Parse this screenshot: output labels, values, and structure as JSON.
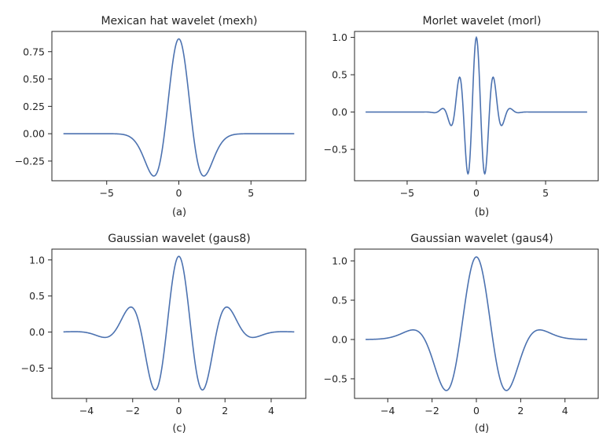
{
  "chart_data": [
    {
      "type": "line",
      "title": "Mexican hat wavelet (mexh)",
      "xlabel": "(a)",
      "ylabel": "",
      "xlim": [
        -8.8,
        8.8
      ],
      "ylim": [
        -0.43,
        0.935
      ],
      "xticks": [
        -5,
        0,
        5
      ],
      "xtick_labels": [
        "−5",
        "0",
        "5"
      ],
      "yticks": [
        -0.25,
        0.0,
        0.25,
        0.5,
        0.75
      ],
      "ytick_labels": [
        "−0.25",
        "0.00",
        "0.25",
        "0.50",
        "0.75"
      ],
      "grid": false,
      "wavelet": "mexh",
      "x_range": [
        -8,
        8
      ],
      "peak": 0.867,
      "min": -0.385,
      "series": [
        {
          "color": "#4c72b0"
        }
      ]
    },
    {
      "type": "line",
      "title": "Morlet wavelet (morl)",
      "xlabel": "(b)",
      "ylabel": "",
      "xlim": [
        -8.8,
        8.8
      ],
      "ylim": [
        -0.92,
        1.08
      ],
      "xticks": [
        -5,
        0,
        5
      ],
      "xtick_labels": [
        "−5",
        "0",
        "5"
      ],
      "yticks": [
        -0.5,
        0.0,
        0.5,
        1.0
      ],
      "ytick_labels": [
        "−0.5",
        "0.0",
        "0.5",
        "1.0"
      ],
      "grid": false,
      "wavelet": "morl",
      "x_range": [
        -8,
        8
      ],
      "peak": 1.0,
      "min": -0.84,
      "series": [
        {
          "color": "#4c72b0"
        }
      ]
    },
    {
      "type": "line",
      "title": "Gaussian wavelet (gaus8)",
      "xlabel": "(c)",
      "ylabel": "",
      "xlim": [
        -5.5,
        5.5
      ],
      "ylim": [
        -0.92,
        1.15
      ],
      "xticks": [
        -4,
        -2,
        0,
        2,
        4
      ],
      "xtick_labels": [
        "−4",
        "−2",
        "0",
        "2",
        "4"
      ],
      "yticks": [
        -0.5,
        0.0,
        0.5,
        1.0
      ],
      "ytick_labels": [
        "−0.5",
        "0.0",
        "0.5",
        "1.0"
      ],
      "grid": false,
      "wavelet": "gaus8",
      "x_range": [
        -5,
        5
      ],
      "peak": 1.05,
      "min": -0.81,
      "series": [
        {
          "color": "#4c72b0"
        }
      ]
    },
    {
      "type": "line",
      "title": "Gaussian wavelet (gaus4)",
      "xlabel": "(d)",
      "ylabel": "",
      "xlim": [
        -5.5,
        5.5
      ],
      "ylim": [
        -0.75,
        1.15
      ],
      "xticks": [
        -4,
        -2,
        0,
        2,
        4
      ],
      "xtick_labels": [
        "−4",
        "−2",
        "0",
        "2",
        "4"
      ],
      "yticks": [
        -0.5,
        0.0,
        0.5,
        1.0
      ],
      "ytick_labels": [
        "−0.5",
        "0.0",
        "0.5",
        "1.0"
      ],
      "grid": false,
      "wavelet": "gaus4",
      "x_range": [
        -5,
        5
      ],
      "peak": 1.05,
      "min": -0.64,
      "series": [
        {
          "color": "#4c72b0"
        }
      ]
    }
  ]
}
